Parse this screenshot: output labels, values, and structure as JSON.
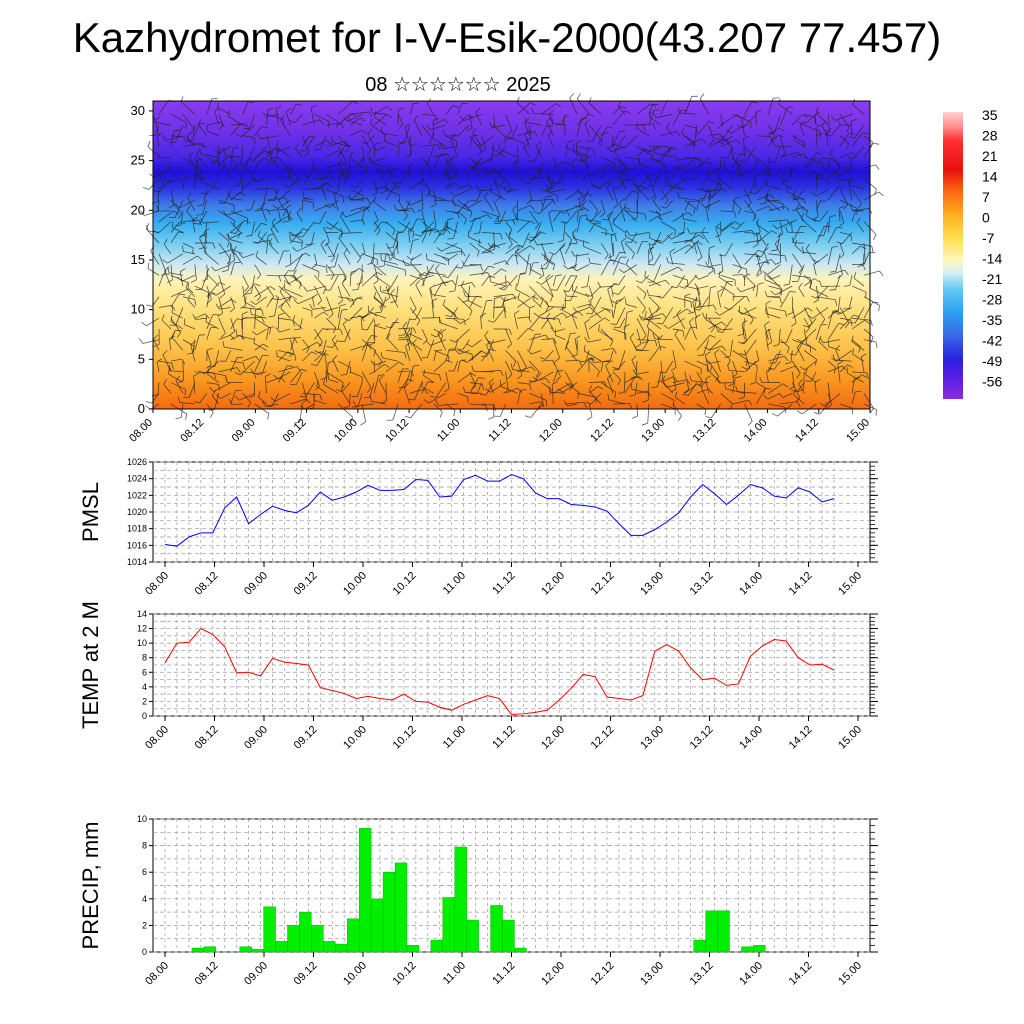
{
  "header": {
    "title": "Kazhydromet for I-V-Esik-2000(43.207 77.457)",
    "subtitle": "08 ☆☆☆☆☆☆ 2025"
  },
  "colorbar": {
    "labels": [
      "35",
      "28",
      "21",
      "14",
      "7",
      "0",
      "-7",
      "-14",
      "-21",
      "-28",
      "-35",
      "-42",
      "-49",
      "-56"
    ],
    "top_color": "#ffd0d0",
    "bottom_color": "#8a2be2"
  },
  "colors": {
    "pmsl_line": "#0000ff",
    "temp_line": "#ff0000",
    "precip_bar": "#00ee00",
    "precip_bar_edge": "#00aa00"
  },
  "chart_data": [
    {
      "id": "vertical",
      "type": "heatmap",
      "title": "",
      "xlabel": "",
      "ylabel": "",
      "x_ticks": [
        "08.00",
        "08.12",
        "09.00",
        "09.12",
        "10.00",
        "10.12",
        "11.00",
        "11.12",
        "12.00",
        "12.12",
        "13.00",
        "13.12",
        "14.00",
        "14.12",
        "15.00"
      ],
      "y_ticks": [
        "0",
        "5",
        "10",
        "15",
        "20",
        "25",
        "30"
      ],
      "ylim": [
        0,
        31
      ],
      "color_bands": [
        {
          "height_range": [
            0,
            6
          ],
          "temperature_range": [
            14,
            7
          ],
          "color": "orange"
        },
        {
          "height_range": [
            6,
            14
          ],
          "temperature_range": [
            7,
            -7
          ],
          "color": "yellow"
        },
        {
          "height_range": [
            14,
            18
          ],
          "temperature_range": [
            -14,
            -21
          ],
          "color": "light blue"
        },
        {
          "height_range": [
            18,
            23
          ],
          "temperature_range": [
            -28,
            -42
          ],
          "color": "blue"
        },
        {
          "height_range": [
            23,
            25
          ],
          "temperature_range": [
            -49,
            -56
          ],
          "color": "deep blue"
        },
        {
          "height_range": [
            25,
            31
          ],
          "temperature_range": [
            -49,
            -56
          ],
          "color": "violet"
        }
      ],
      "wind_barbs": true
    },
    {
      "id": "pmsl",
      "type": "line",
      "title": "",
      "ylabel": "PMSL",
      "ylim": [
        1014,
        1026
      ],
      "y_ticks": [
        "1014",
        "1016",
        "1018",
        "1020",
        "1022",
        "1024",
        "1026"
      ],
      "x_ticks": [
        "08.00",
        "08.12",
        "09.00",
        "09.12",
        "10.00",
        "10.12",
        "11.00",
        "11.12",
        "12.00",
        "12.12",
        "13.00",
        "13.12",
        "14.00",
        "14.12",
        "15.00"
      ],
      "x_step_hours": 3,
      "values": [
        1016.1,
        1015.9,
        1017.0,
        1017.5,
        1017.5,
        1020.5,
        1021.8,
        1018.6,
        1019.7,
        1020.7,
        1020.2,
        1019.9,
        1020.8,
        1022.4,
        1021.4,
        1021.8,
        1022.4,
        1023.2,
        1022.6,
        1022.6,
        1022.7,
        1023.9,
        1023.8,
        1021.8,
        1021.9,
        1023.9,
        1024.4,
        1023.7,
        1023.7,
        1024.5,
        1024.0,
        1022.3,
        1021.6,
        1021.6,
        1020.9,
        1020.8,
        1020.6,
        1020.1,
        1018.6,
        1017.2,
        1017.2,
        1017.9,
        1018.8,
        1019.9,
        1021.8,
        1023.3,
        1022.2,
        1020.9,
        1022.0,
        1023.3,
        1022.9,
        1021.9,
        1021.7,
        1022.9,
        1022.4,
        1021.2,
        1021.6
      ]
    },
    {
      "id": "temp",
      "type": "line",
      "title": "",
      "ylabel": "TEMP at 2 M",
      "ylim": [
        0,
        14
      ],
      "y_ticks": [
        "0",
        "2",
        "4",
        "6",
        "8",
        "10",
        "12",
        "14"
      ],
      "x_ticks": [
        "08.00",
        "08.12",
        "09.00",
        "09.12",
        "10.00",
        "10.12",
        "11.00",
        "11.12",
        "12.00",
        "12.12",
        "13.00",
        "13.12",
        "14.00",
        "14.12",
        "15.00"
      ],
      "x_step_hours": 3,
      "values": [
        7.3,
        10.0,
        10.1,
        12.0,
        11.2,
        9.5,
        5.9,
        6.0,
        5.5,
        7.9,
        7.4,
        7.2,
        7.0,
        3.9,
        3.5,
        3.1,
        2.4,
        2.7,
        2.4,
        2.2,
        3.0,
        2.0,
        1.9,
        1.2,
        0.8,
        1.6,
        2.2,
        2.8,
        2.4,
        0.2,
        0.3,
        0.5,
        0.8,
        2.2,
        3.8,
        5.7,
        5.4,
        2.6,
        2.4,
        2.2,
        2.8,
        8.9,
        9.8,
        8.9,
        6.6,
        5.0,
        5.2,
        4.2,
        4.4,
        8.2,
        9.6,
        10.5,
        10.3,
        8.0,
        7.0,
        7.1,
        6.3
      ]
    },
    {
      "id": "precip",
      "type": "bar",
      "title": "",
      "ylabel": "PRECIP, mm",
      "ylim": [
        0,
        10
      ],
      "y_ticks": [
        "0",
        "2",
        "4",
        "6",
        "8",
        "10"
      ],
      "x_ticks": [
        "08.00",
        "08.12",
        "09.00",
        "09.12",
        "10.00",
        "10.12",
        "11.00",
        "11.12",
        "12.00",
        "12.12",
        "13.00",
        "13.12",
        "14.00",
        "14.12",
        "15.00"
      ],
      "x_step_hours": 3,
      "values": [
        0,
        0,
        0.3,
        0.4,
        0,
        0,
        0.4,
        0.2,
        3.4,
        0.8,
        2.0,
        3.0,
        2.0,
        0.8,
        0.6,
        2.5,
        9.3,
        4.0,
        6.0,
        6.7,
        0.5,
        0,
        0.9,
        4.1,
        7.9,
        2.4,
        0,
        3.5,
        2.4,
        0.3,
        0,
        0,
        0,
        0,
        0,
        0,
        0,
        0,
        0,
        0,
        0,
        0,
        0,
        0,
        0.9,
        3.1,
        3.1,
        0,
        0.4,
        0.5,
        0,
        0,
        0,
        0,
        0,
        0,
        0
      ]
    }
  ]
}
